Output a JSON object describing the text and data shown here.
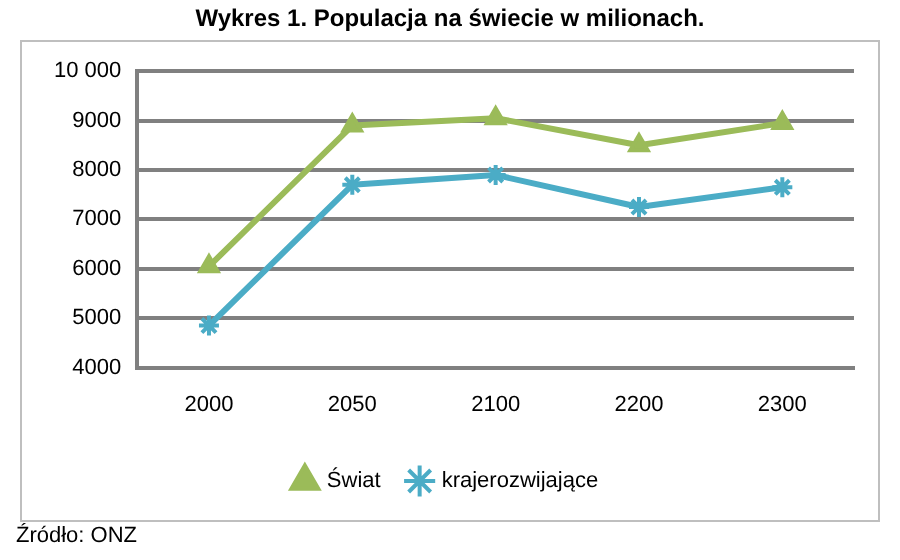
{
  "chart_data": {
    "type": "line",
    "title": "Wykres 1. Populacja na świecie w milionach.",
    "categories": [
      "2000",
      "2050",
      "2100",
      "2200",
      "2300"
    ],
    "series": [
      {
        "name": "Świat",
        "color": "#9bbb59",
        "marker": "triangle",
        "values": [
          6050,
          8900,
          9050,
          8500,
          8950
        ]
      },
      {
        "name": "krajerozwijające",
        "color": "#4bacc6",
        "marker": "cross",
        "values": [
          4850,
          7700,
          7900,
          7250,
          7650
        ]
      }
    ],
    "ylim": [
      4000,
      10000
    ],
    "yticks": [
      4000,
      5000,
      6000,
      7000,
      8000,
      9000,
      {
        "value": 10000,
        "label": "10 000"
      }
    ],
    "grid": "y",
    "legend": "bottom",
    "annotations": [
      "Źródło: ONZ"
    ]
  }
}
